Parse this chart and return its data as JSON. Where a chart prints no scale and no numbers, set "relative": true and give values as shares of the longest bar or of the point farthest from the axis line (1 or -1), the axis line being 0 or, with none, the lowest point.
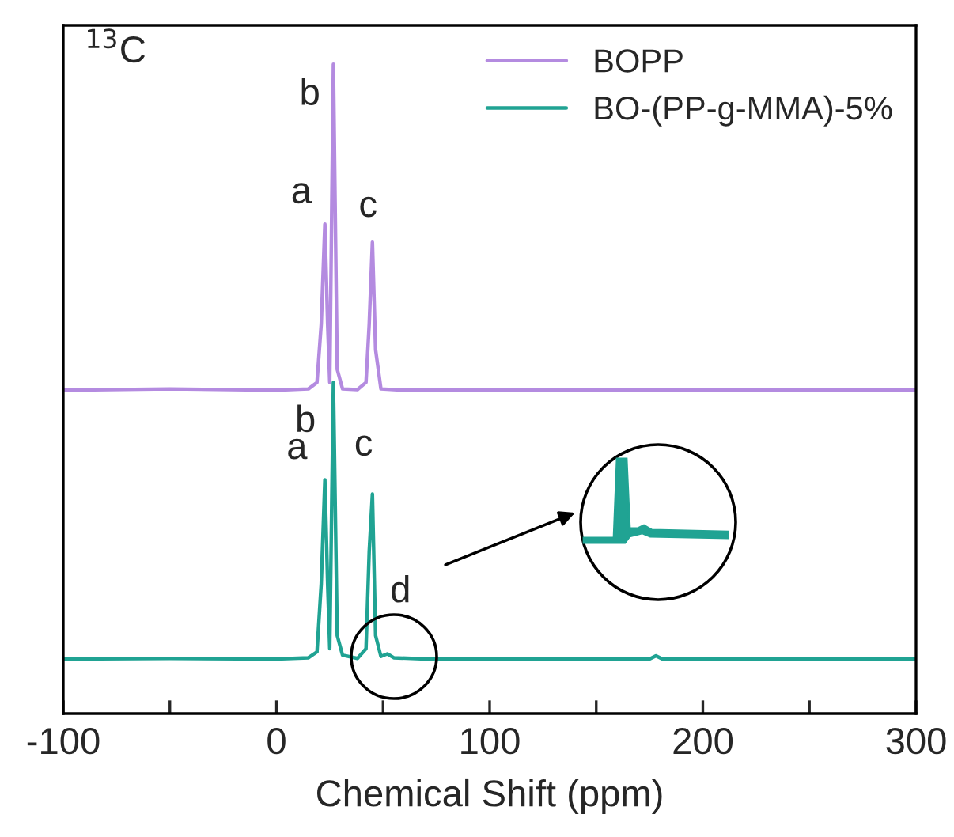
{
  "chart_data": {
    "type": "line",
    "relative": true,
    "xlabel": "Chemical Shift (ppm)",
    "xlim": [
      -100,
      300
    ],
    "xticks": [
      -100,
      {
        "value": -50,
        "label": null
      },
      0,
      {
        "value": 50,
        "label": null
      },
      100,
      {
        "value": 150,
        "label": null
      },
      200,
      {
        "value": 250,
        "label": null
      },
      300
    ],
    "tick_labels": "x",
    "grid": false,
    "legend": "top right",
    "marker": "none",
    "line_style": "solid",
    "series": [
      {
        "name": "BOPP",
        "color": "#b48be0",
        "x": [
          -100,
          -50,
          0,
          15,
          19,
          21,
          22.7,
          24,
          25,
          26.7,
          28.5,
          31,
          38,
          42,
          43.5,
          45,
          46.5,
          49,
          60,
          100,
          200,
          300
        ],
        "values": [
          0.498,
          0.5,
          0.498,
          0.5,
          0.51,
          0.6,
          0.754,
          0.6,
          0.51,
          1.0,
          0.53,
          0.5,
          0.499,
          0.51,
          0.6,
          0.726,
          0.56,
          0.5,
          0.498,
          0.498,
          0.498,
          0.498
        ]
      },
      {
        "name": "BO-(PP-g-MMA)-5%",
        "color": "#20a393",
        "x": [
          -100,
          -50,
          0,
          15,
          19,
          21,
          22.7,
          24,
          25,
          26.7,
          28.5,
          31,
          38,
          42,
          43.5,
          45,
          46.5,
          49,
          52,
          55,
          70,
          100,
          150,
          175,
          178,
          181,
          200,
          300
        ],
        "values": [
          0.084,
          0.085,
          0.084,
          0.086,
          0.095,
          0.2,
          0.36,
          0.2,
          0.1,
          0.51,
          0.12,
          0.09,
          0.085,
          0.1,
          0.25,
          0.338,
          0.12,
          0.088,
          0.092,
          0.086,
          0.084,
          0.084,
          0.084,
          0.084,
          0.089,
          0.084,
          0.084,
          0.084
        ]
      }
    ],
    "annotations": [
      "$^{13}$C",
      {
        "text": "a",
        "x": 22.7,
        "y": 0.754
      },
      {
        "text": "b",
        "x": 26.7,
        "y": 1.0
      },
      {
        "text": "c",
        "x": 45,
        "y": 0.726
      },
      {
        "text": "a",
        "x": 22.7,
        "y": 0.36
      },
      {
        "text": "b",
        "x": 26.7,
        "y": 0.51
      },
      {
        "text": "c",
        "x": 45,
        "y": 0.338
      },
      {
        "text": "d",
        "x": 52,
        "y": 0.092
      }
    ]
  }
}
